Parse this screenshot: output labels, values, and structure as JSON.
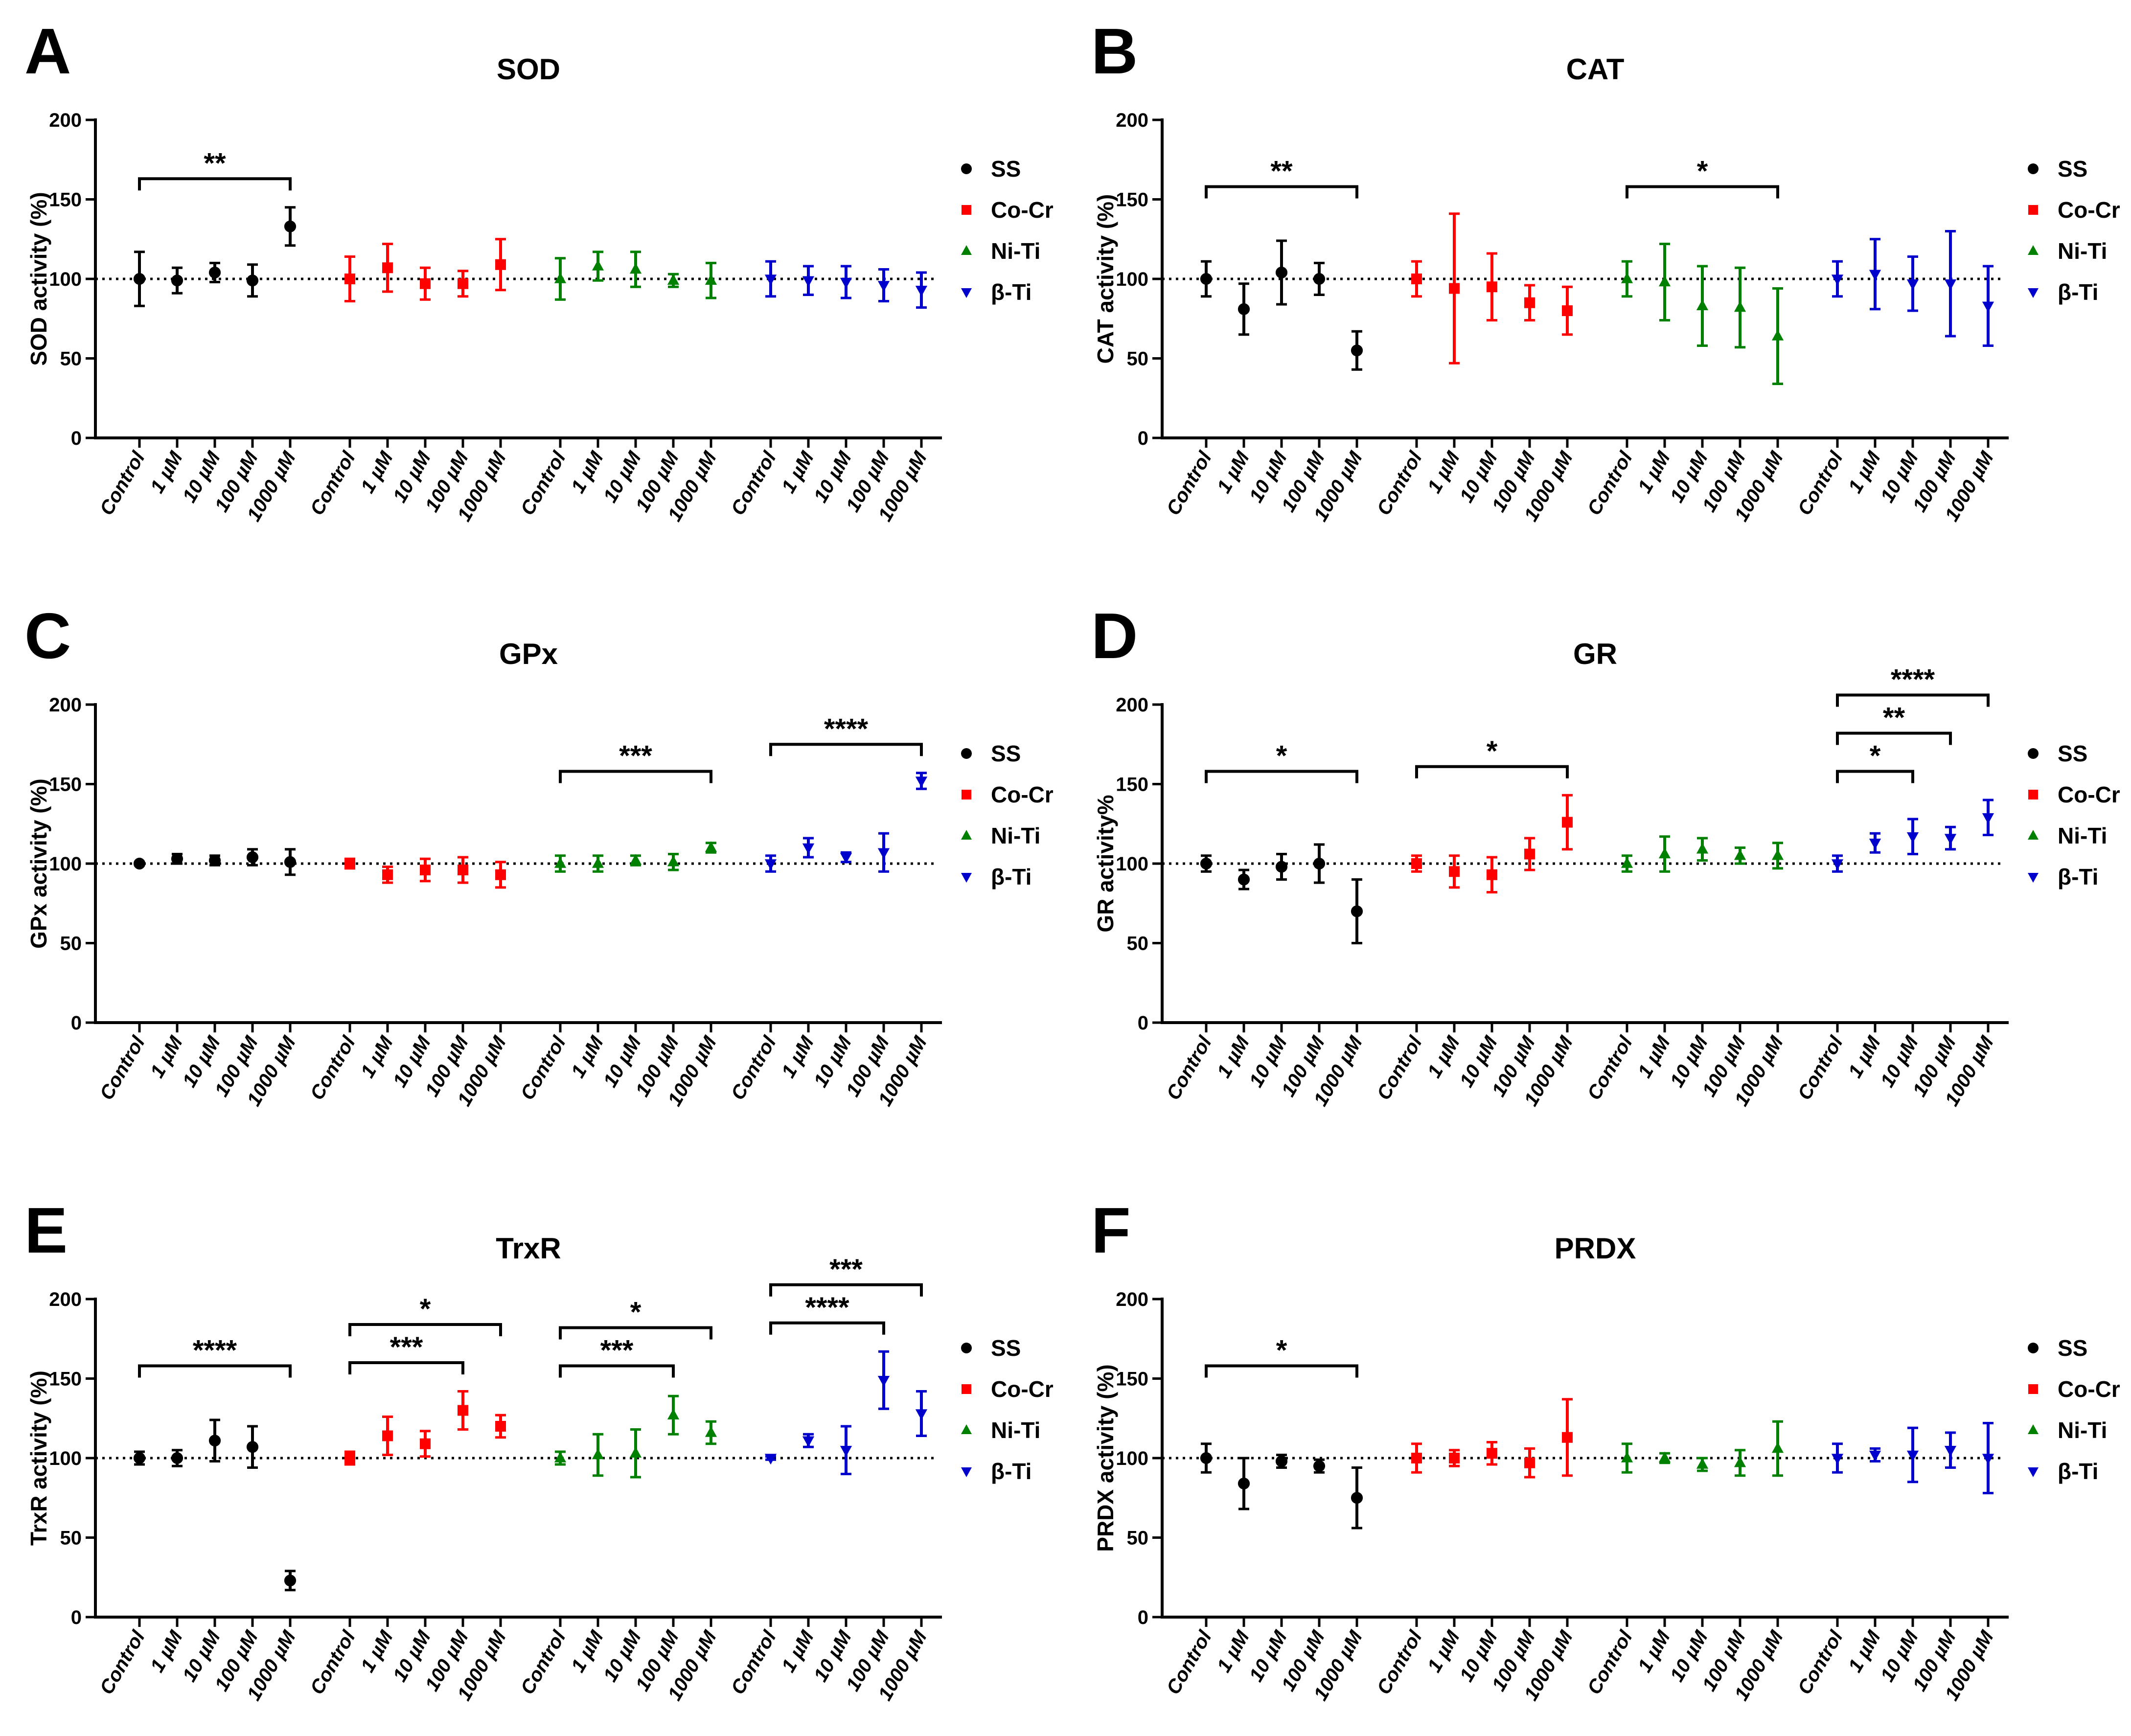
{
  "legend": [
    "SS",
    "Co-Cr",
    "Ni-Ti",
    "β-Ti"
  ],
  "group_colors": [
    "#000000",
    "#ff0000",
    "#008000",
    "#0000cc"
  ],
  "group_markers": [
    "circle-icon",
    "square-icon",
    "triangle-up-icon",
    "triangle-down-icon"
  ],
  "x_tick_labels": [
    "Control",
    "1 µM",
    "10 µM",
    "100 µM",
    "1000 µM"
  ],
  "chart_data": [
    {
      "panel": "A",
      "title": "SOD",
      "ylabel": "SOD activity  (%)",
      "type": "scatter",
      "ylim": [
        0,
        200
      ],
      "yticks": [
        0,
        50,
        100,
        150,
        200
      ],
      "reference_line": 100,
      "series": [
        {
          "name": "SS",
          "values": [
            100,
            99,
            104,
            99,
            133
          ],
          "err": [
            17,
            8,
            6,
            10,
            12
          ]
        },
        {
          "name": "Co-Cr",
          "values": [
            100,
            107,
            97,
            97,
            109
          ],
          "err": [
            14,
            15,
            10,
            8,
            16
          ]
        },
        {
          "name": "Ni-Ti",
          "values": [
            100,
            108,
            106,
            99,
            99
          ],
          "err": [
            13,
            9,
            11,
            4,
            11
          ]
        },
        {
          "name": "β-Ti",
          "values": [
            100,
            99,
            98,
            96,
            93
          ],
          "err": [
            11,
            9,
            10,
            10,
            11
          ]
        }
      ],
      "significance": [
        {
          "from": [
            0,
            0
          ],
          "to": [
            0,
            4
          ],
          "label": "**"
        }
      ]
    },
    {
      "panel": "B",
      "title": "CAT",
      "ylabel": "CAT activity (%)",
      "type": "scatter",
      "ylim": [
        0,
        200
      ],
      "yticks": [
        0,
        50,
        100,
        150,
        200
      ],
      "reference_line": 100,
      "series": [
        {
          "name": "SS",
          "values": [
            100,
            81,
            104,
            100,
            55
          ],
          "err": [
            11,
            16,
            20,
            10,
            12
          ]
        },
        {
          "name": "Co-Cr",
          "values": [
            100,
            94,
            95,
            85,
            80
          ],
          "err": [
            11,
            47,
            21,
            11,
            15
          ]
        },
        {
          "name": "Ni-Ti",
          "values": [
            100,
            98,
            83,
            82,
            64
          ],
          "err": [
            11,
            24,
            25,
            25,
            30
          ]
        },
        {
          "name": "β-Ti",
          "values": [
            100,
            103,
            97,
            97,
            83
          ],
          "err": [
            11,
            22,
            17,
            33,
            25
          ]
        }
      ],
      "significance": [
        {
          "from": [
            0,
            0
          ],
          "to": [
            0,
            4
          ],
          "label": "**"
        },
        {
          "from": [
            2,
            0
          ],
          "to": [
            2,
            4
          ],
          "label": "*"
        }
      ]
    },
    {
      "panel": "C",
      "title": "GPx",
      "ylabel": "GPx activity (%)",
      "type": "scatter",
      "ylim": [
        0,
        200
      ],
      "yticks": [
        0,
        50,
        100,
        150,
        200
      ],
      "reference_line": 100,
      "series": [
        {
          "name": "SS",
          "values": [
            100,
            103,
            102,
            104,
            101
          ],
          "err": [
            1,
            3,
            3,
            5,
            8
          ]
        },
        {
          "name": "Co-Cr",
          "values": [
            100,
            93,
            96,
            96,
            93
          ],
          "err": [
            3,
            5,
            7,
            8,
            8
          ]
        },
        {
          "name": "Ni-Ti",
          "values": [
            100,
            100,
            102,
            101,
            110
          ],
          "err": [
            5,
            5,
            3,
            5,
            3
          ]
        },
        {
          "name": "β-Ti",
          "values": [
            100,
            110,
            104,
            107,
            152
          ],
          "err": [
            5,
            6,
            3,
            12,
            5
          ]
        }
      ],
      "significance": [
        {
          "from": [
            2,
            0
          ],
          "to": [
            2,
            4
          ],
          "label": "***"
        },
        {
          "from": [
            3,
            0
          ],
          "to": [
            3,
            4
          ],
          "label": "****"
        }
      ]
    },
    {
      "panel": "D",
      "title": "GR",
      "ylabel": "GR activity%",
      "type": "scatter",
      "ylim": [
        0,
        200
      ],
      "yticks": [
        0,
        50,
        100,
        150,
        200
      ],
      "reference_line": 100,
      "series": [
        {
          "name": "SS",
          "values": [
            100,
            90,
            98,
            100,
            70
          ],
          "err": [
            5,
            6,
            8,
            12,
            20
          ]
        },
        {
          "name": "Co-Cr",
          "values": [
            100,
            95,
            93,
            106,
            126
          ],
          "err": [
            5,
            10,
            11,
            10,
            17
          ]
        },
        {
          "name": "Ni-Ti",
          "values": [
            100,
            106,
            109,
            105,
            105
          ],
          "err": [
            5,
            11,
            7,
            5,
            8
          ]
        },
        {
          "name": "β-Ti",
          "values": [
            100,
            113,
            117,
            116,
            129
          ],
          "err": [
            5,
            6,
            11,
            7,
            11
          ]
        }
      ],
      "significance": [
        {
          "from": [
            0,
            0
          ],
          "to": [
            0,
            4
          ],
          "label": "*"
        },
        {
          "from": [
            1,
            0
          ],
          "to": [
            1,
            4
          ],
          "label": "*"
        },
        {
          "from": [
            3,
            0
          ],
          "to": [
            3,
            2
          ],
          "label": "*"
        },
        {
          "from": [
            3,
            0
          ],
          "to": [
            3,
            3
          ],
          "label": "**"
        },
        {
          "from": [
            3,
            0
          ],
          "to": [
            3,
            4
          ],
          "label": "****"
        }
      ]
    },
    {
      "panel": "E",
      "title": "TrxR",
      "ylabel": "TrxR activity  (%)",
      "type": "scatter",
      "ylim": [
        0,
        200
      ],
      "yticks": [
        0,
        50,
        100,
        150,
        200
      ],
      "reference_line": 100,
      "series": [
        {
          "name": "SS",
          "values": [
            100,
            100,
            111,
            107,
            23
          ],
          "err": [
            4,
            5,
            13,
            13,
            6
          ]
        },
        {
          "name": "Co-Cr",
          "values": [
            100,
            114,
            109,
            130,
            120
          ],
          "err": [
            4,
            12,
            8,
            12,
            7
          ]
        },
        {
          "name": "Ni-Ti",
          "values": [
            100,
            102,
            103,
            127,
            116
          ],
          "err": [
            4,
            13,
            15,
            12,
            7
          ]
        },
        {
          "name": "β-Ti",
          "values": [
            100,
            111,
            105,
            149,
            128
          ],
          "err": [
            1,
            4,
            15,
            18,
            14
          ]
        }
      ],
      "significance": [
        {
          "from": [
            0,
            0
          ],
          "to": [
            0,
            4
          ],
          "label": "****"
        },
        {
          "from": [
            1,
            0
          ],
          "to": [
            1,
            3
          ],
          "label": "***"
        },
        {
          "from": [
            1,
            0
          ],
          "to": [
            1,
            4
          ],
          "label": "*"
        },
        {
          "from": [
            2,
            0
          ],
          "to": [
            2,
            3
          ],
          "label": "***"
        },
        {
          "from": [
            2,
            0
          ],
          "to": [
            2,
            4
          ],
          "label": "*"
        },
        {
          "from": [
            3,
            0
          ],
          "to": [
            3,
            3
          ],
          "label": "****"
        },
        {
          "from": [
            3,
            0
          ],
          "to": [
            3,
            4
          ],
          "label": "***"
        }
      ]
    },
    {
      "panel": "F",
      "title": "PRDX",
      "ylabel": "PRDX activity (%)",
      "type": "scatter",
      "ylim": [
        0,
        200
      ],
      "yticks": [
        0,
        50,
        100,
        150,
        200
      ],
      "reference_line": 100,
      "series": [
        {
          "name": "SS",
          "values": [
            100,
            84,
            98,
            95,
            75
          ],
          "err": [
            9,
            16,
            4,
            4,
            19
          ]
        },
        {
          "name": "Co-Cr",
          "values": [
            100,
            100,
            103,
            97,
            113
          ],
          "err": [
            9,
            5,
            7,
            9,
            24
          ]
        },
        {
          "name": "Ni-Ti",
          "values": [
            100,
            100,
            96,
            97,
            106
          ],
          "err": [
            9,
            3,
            4,
            8,
            17
          ]
        },
        {
          "name": "β-Ti",
          "values": [
            100,
            102,
            102,
            105,
            100
          ],
          "err": [
            9,
            4,
            17,
            11,
            22
          ]
        }
      ],
      "significance": [
        {
          "from": [
            0,
            0
          ],
          "to": [
            0,
            4
          ],
          "label": "*"
        }
      ]
    }
  ]
}
